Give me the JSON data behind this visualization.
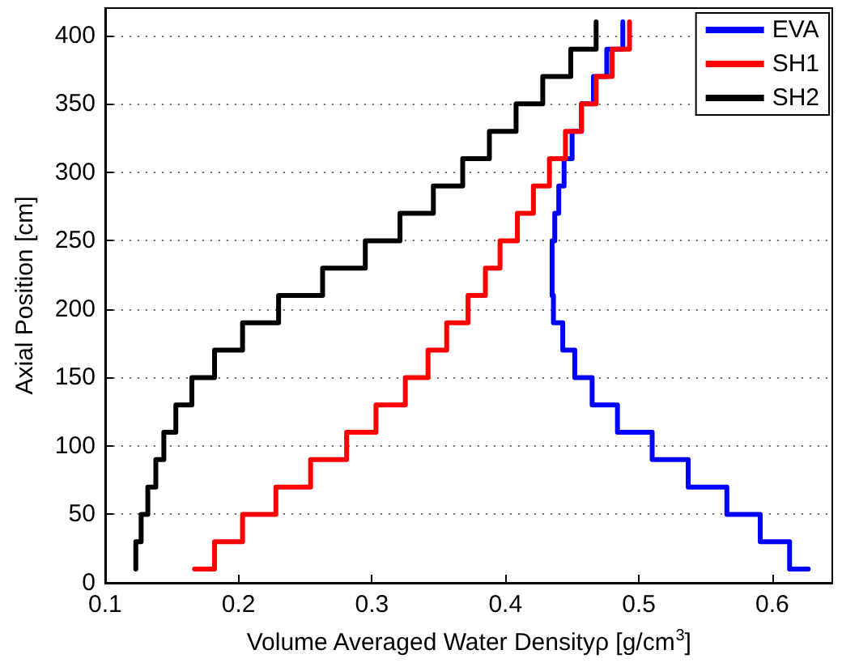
{
  "chart_data": {
    "type": "line",
    "xlabel": "Volume Averaged Water Densityρ [g/cm$^{3}$]",
    "ylabel": "Axial Position [cm]",
    "xlim": [
      0.1,
      0.645
    ],
    "xticks": [
      0.1,
      0.2,
      0.3,
      0.4,
      0.5,
      0.6
    ],
    "ylim": [
      0,
      420
    ],
    "yticks": [
      0,
      50,
      100,
      150,
      200,
      250,
      300,
      350,
      400
    ],
    "grid": "y",
    "legend": "top right",
    "line_style": "solid",
    "marker": "none",
    "series": [
      {
        "name": "EVA",
        "color": "#0000ff",
        "x": [
          0.627,
          0.613,
          0.613,
          0.591,
          0.591,
          0.566,
          0.566,
          0.537,
          0.537,
          0.51,
          0.51,
          0.484,
          0.484,
          0.465,
          0.465,
          0.452,
          0.452,
          0.443,
          0.443,
          0.436,
          0.436,
          0.435,
          0.435,
          0.435,
          0.435,
          0.437,
          0.437,
          0.44,
          0.44,
          0.444,
          0.444,
          0.45,
          0.45,
          0.457,
          0.457,
          0.466,
          0.466,
          0.476,
          0.476,
          0.488,
          0.488
        ],
        "values": [
          10,
          10,
          30,
          30,
          50,
          50,
          70,
          70,
          90,
          90,
          110,
          110,
          130,
          130,
          150,
          150,
          170,
          170,
          190,
          190,
          210,
          210,
          230,
          230,
          250,
          250,
          270,
          270,
          290,
          290,
          310,
          310,
          330,
          330,
          350,
          350,
          370,
          370,
          390,
          390,
          410
        ]
      },
      {
        "name": "SH1",
        "color": "#ff0000",
        "x": [
          0.167,
          0.182,
          0.182,
          0.203,
          0.203,
          0.228,
          0.228,
          0.254,
          0.254,
          0.281,
          0.281,
          0.303,
          0.303,
          0.325,
          0.325,
          0.342,
          0.342,
          0.356,
          0.356,
          0.372,
          0.372,
          0.385,
          0.385,
          0.396,
          0.396,
          0.409,
          0.409,
          0.421,
          0.421,
          0.433,
          0.433,
          0.445,
          0.445,
          0.457,
          0.457,
          0.468,
          0.468,
          0.48,
          0.48,
          0.493,
          0.493
        ],
        "values": [
          10,
          10,
          30,
          30,
          50,
          50,
          70,
          70,
          90,
          90,
          110,
          110,
          130,
          130,
          150,
          150,
          170,
          170,
          190,
          190,
          210,
          210,
          230,
          230,
          250,
          250,
          270,
          270,
          290,
          290,
          310,
          310,
          330,
          330,
          350,
          350,
          370,
          370,
          390,
          390,
          410
        ]
      },
      {
        "name": "SH2",
        "color": "#000000",
        "x": [
          0.123,
          0.123,
          0.127,
          0.127,
          0.132,
          0.132,
          0.138,
          0.138,
          0.144,
          0.144,
          0.153,
          0.153,
          0.165,
          0.165,
          0.182,
          0.182,
          0.203,
          0.203,
          0.23,
          0.23,
          0.263,
          0.263,
          0.295,
          0.295,
          0.321,
          0.321,
          0.346,
          0.346,
          0.368,
          0.368,
          0.388,
          0.388,
          0.408,
          0.408,
          0.428,
          0.428,
          0.449,
          0.449,
          0.468,
          0.468
        ],
        "values": [
          10,
          30,
          30,
          50,
          50,
          70,
          70,
          90,
          90,
          110,
          110,
          130,
          130,
          150,
          150,
          170,
          170,
          190,
          190,
          210,
          210,
          230,
          230,
          250,
          250,
          270,
          270,
          290,
          290,
          310,
          310,
          330,
          330,
          350,
          350,
          370,
          370,
          390,
          390,
          410
        ]
      }
    ]
  }
}
